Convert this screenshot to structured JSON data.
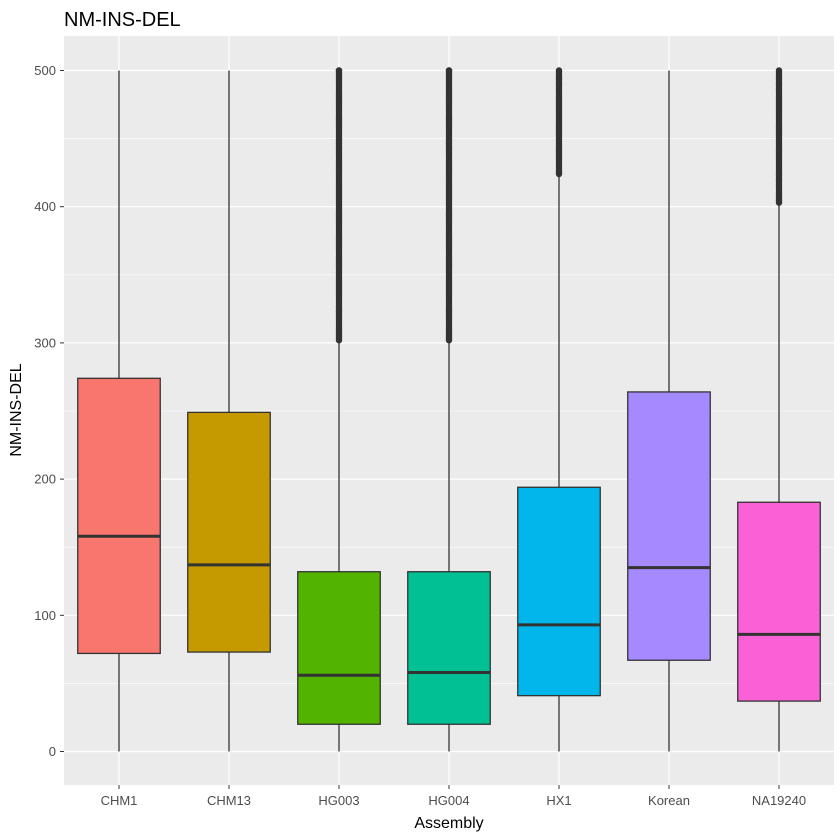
{
  "chart_data": {
    "type": "boxplot",
    "title": "NM-INS-DEL",
    "xlabel": "Assembly",
    "ylabel": "NM-INS-DEL",
    "ylim": [
      -25,
      525
    ],
    "yticks": [
      0,
      100,
      200,
      300,
      400,
      500
    ],
    "grid": true,
    "legend": "none",
    "categories": [
      "CHM1",
      "CHM13",
      "HG003",
      "HG004",
      "HX1",
      "Korean",
      "NA19240"
    ],
    "colors": [
      "#F8766D",
      "#C49A00",
      "#53B400",
      "#00C094",
      "#00B6EB",
      "#A58AFF",
      "#FB61D7"
    ],
    "boxes": [
      {
        "q1": 72,
        "median": 158,
        "q3": 274,
        "whisker_low": 0,
        "whisker_high": 500,
        "outlier_range": null
      },
      {
        "q1": 73,
        "median": 137,
        "q3": 249,
        "whisker_low": 0,
        "whisker_high": 500,
        "outlier_range": null
      },
      {
        "q1": 20,
        "median": 56,
        "q3": 132,
        "whisker_low": 0,
        "whisker_high": 301,
        "outlier_range": [
          302,
          500
        ]
      },
      {
        "q1": 20,
        "median": 58,
        "q3": 132,
        "whisker_low": 0,
        "whisker_high": 301,
        "outlier_range": [
          302,
          500
        ]
      },
      {
        "q1": 41,
        "median": 93,
        "q3": 194,
        "whisker_low": 0,
        "whisker_high": 423,
        "outlier_range": [
          424,
          500
        ]
      },
      {
        "q1": 67,
        "median": 135,
        "q3": 264,
        "whisker_low": 0,
        "whisker_high": 500,
        "outlier_range": null
      },
      {
        "q1": 37,
        "median": 86,
        "q3": 183,
        "whisker_low": 0,
        "whisker_high": 402,
        "outlier_range": [
          403,
          500
        ]
      }
    ]
  }
}
